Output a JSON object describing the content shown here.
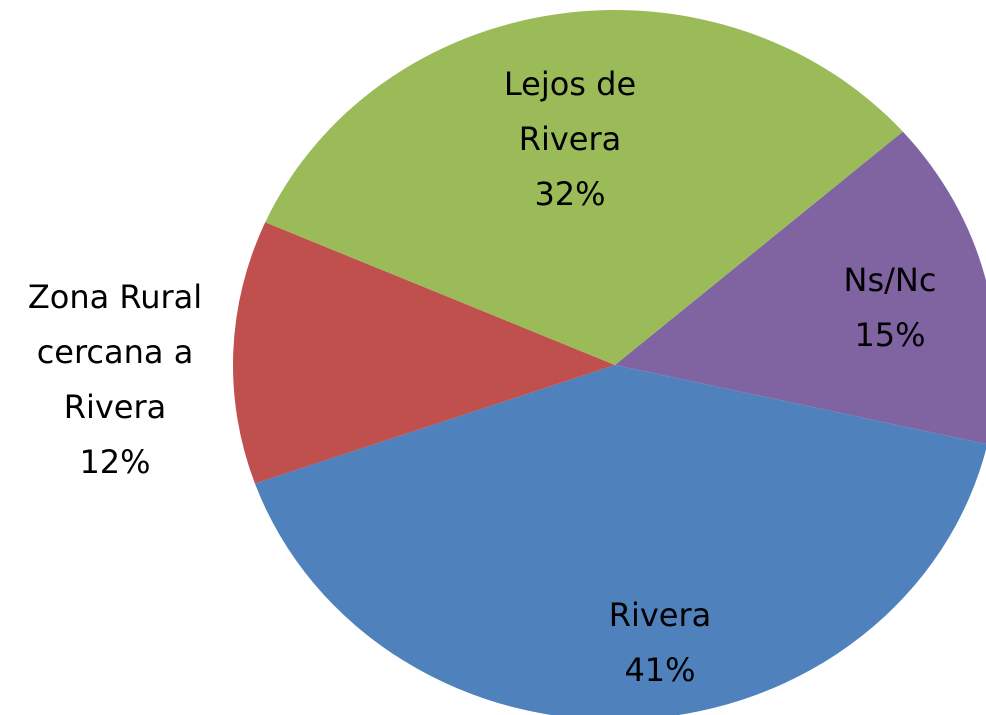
{
  "chart_data": {
    "type": "pie",
    "categories": [
      "Ns/Nc",
      "Rivera",
      "Zona Rural cercana a Rivera",
      "Lejos de Rivera"
    ],
    "values": [
      15,
      41,
      12,
      32
    ],
    "value_labels": [
      "15%",
      "41%",
      "12%",
      "32%"
    ],
    "colors": [
      "#8064a2",
      "#4f81bd",
      "#c0504d",
      "#9bbb59"
    ]
  }
}
